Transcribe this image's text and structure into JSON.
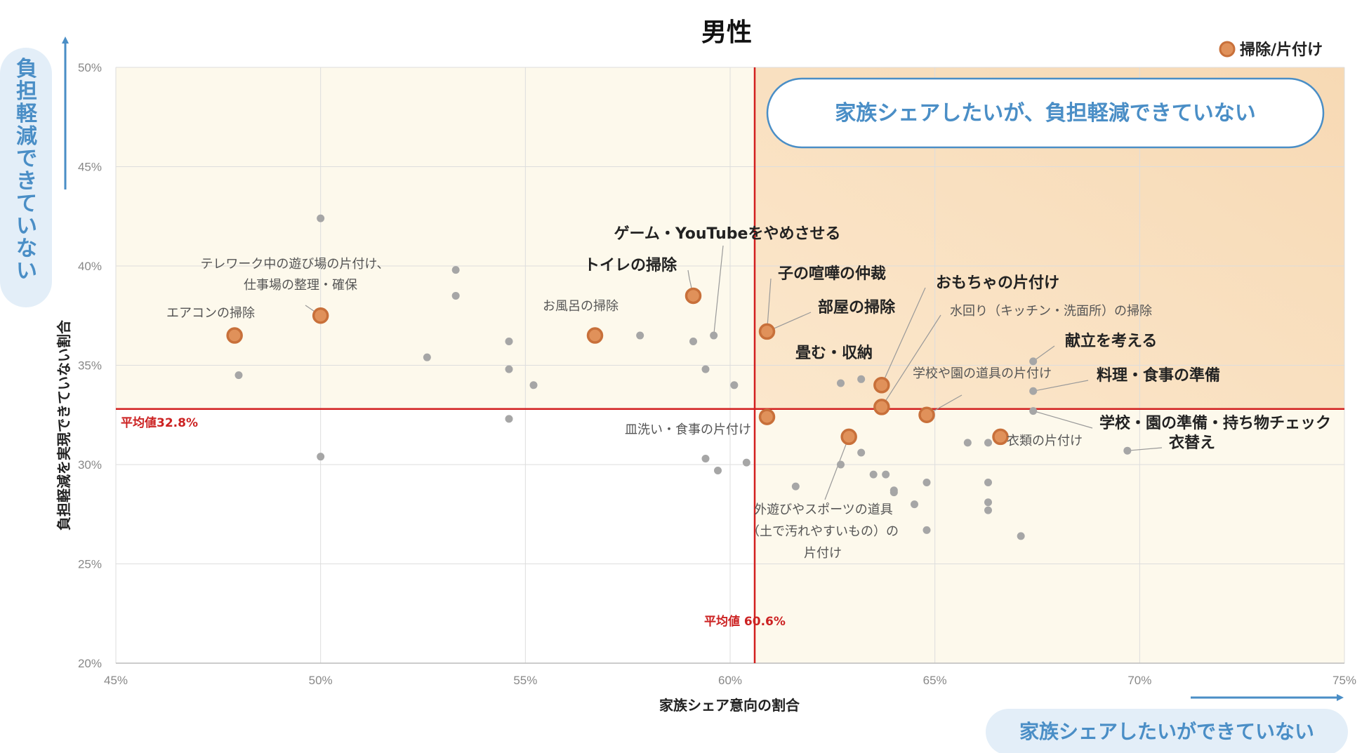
{
  "chart_data": {
    "type": "scatter",
    "title": "男性",
    "xlabel": "家族シェア意向の割合",
    "ylabel": "負担軽減を実現できていない割合",
    "xlim": [
      45,
      75
    ],
    "ylim": [
      20,
      50
    ],
    "x_ticks": [
      "45%",
      "50%",
      "55%",
      "60%",
      "65%",
      "70%",
      "75%"
    ],
    "y_ticks": [
      "20%",
      "25%",
      "30%",
      "35%",
      "40%",
      "45%",
      "50%"
    ],
    "grid": true,
    "legend": {
      "position": "top-right",
      "label": "掃除/片付け",
      "color": "#e0915a"
    },
    "avg_x": {
      "value": 60.6,
      "label": "平均値 60.6%"
    },
    "avg_y": {
      "value": 32.8,
      "label": "平均値32.8%"
    },
    "quadrant_note": "家族シェアしたいが、負担軽減できていない",
    "x_arrow_note": "家族シェアしたいができていない",
    "y_arrow_note": "負担軽減できていない",
    "highlight_points": [
      {
        "x": 47.9,
        "y": 36.5
      },
      {
        "x": 50.0,
        "y": 37.5
      },
      {
        "x": 56.7,
        "y": 36.5
      },
      {
        "x": 59.1,
        "y": 38.5
      },
      {
        "x": 60.9,
        "y": 36.7
      },
      {
        "x": 63.7,
        "y": 34.0
      },
      {
        "x": 63.7,
        "y": 32.9
      },
      {
        "x": 64.8,
        "y": 32.5
      },
      {
        "x": 60.9,
        "y": 32.4
      },
      {
        "x": 62.9,
        "y": 31.4
      },
      {
        "x": 66.6,
        "y": 31.4
      }
    ],
    "other_points": [
      {
        "x": 50.0,
        "y": 42.4
      },
      {
        "x": 48.0,
        "y": 34.5
      },
      {
        "x": 50.0,
        "y": 30.4
      },
      {
        "x": 52.6,
        "y": 35.4
      },
      {
        "x": 53.3,
        "y": 39.8
      },
      {
        "x": 53.3,
        "y": 38.5
      },
      {
        "x": 54.6,
        "y": 36.2
      },
      {
        "x": 54.6,
        "y": 34.8
      },
      {
        "x": 54.6,
        "y": 32.3
      },
      {
        "x": 55.2,
        "y": 34.0
      },
      {
        "x": 57.8,
        "y": 36.5
      },
      {
        "x": 59.1,
        "y": 36.2
      },
      {
        "x": 59.6,
        "y": 36.5
      },
      {
        "x": 59.4,
        "y": 34.8
      },
      {
        "x": 60.1,
        "y": 34.0
      },
      {
        "x": 59.4,
        "y": 30.3
      },
      {
        "x": 59.7,
        "y": 29.7
      },
      {
        "x": 60.4,
        "y": 30.1
      },
      {
        "x": 62.7,
        "y": 34.1
      },
      {
        "x": 63.2,
        "y": 34.3
      },
      {
        "x": 61.6,
        "y": 28.9
      },
      {
        "x": 62.7,
        "y": 30.0
      },
      {
        "x": 63.2,
        "y": 30.6
      },
      {
        "x": 63.5,
        "y": 29.5
      },
      {
        "x": 63.8,
        "y": 29.5
      },
      {
        "x": 64.0,
        "y": 28.7
      },
      {
        "x": 64.0,
        "y": 28.6
      },
      {
        "x": 64.5,
        "y": 28.0
      },
      {
        "x": 64.8,
        "y": 29.1
      },
      {
        "x": 64.8,
        "y": 26.7
      },
      {
        "x": 65.8,
        "y": 31.1
      },
      {
        "x": 66.3,
        "y": 31.1
      },
      {
        "x": 66.3,
        "y": 29.1
      },
      {
        "x": 66.3,
        "y": 28.1
      },
      {
        "x": 66.3,
        "y": 27.7
      },
      {
        "x": 67.1,
        "y": 26.4
      },
      {
        "x": 67.4,
        "y": 35.2
      },
      {
        "x": 67.4,
        "y": 33.7
      },
      {
        "x": 67.4,
        "y": 32.7
      },
      {
        "x": 69.7,
        "y": 30.7
      }
    ],
    "annotations": [
      {
        "text": "エアコンの掃除",
        "x": 47.9,
        "y": 36.5,
        "bold": false
      },
      {
        "text": "テレワーク中の遊び場の片付け、",
        "x": 50.0,
        "y": 37.5,
        "bold": false
      },
      {
        "text": "仕事場の整理・確保",
        "x": 50.0,
        "y": 37.5,
        "bold": false
      },
      {
        "text": "お風呂の掃除",
        "x": 56.7,
        "y": 36.5,
        "bold": false
      },
      {
        "text": "トイレの掃除",
        "x": 59.1,
        "y": 38.5,
        "bold": true
      },
      {
        "text": "ゲーム・YouTubeをやめさせる",
        "x": 59.6,
        "y": 36.5,
        "bold": true
      },
      {
        "text": "子の喧嘩の仲裁",
        "x": 60.9,
        "y": 36.7,
        "bold": true
      },
      {
        "text": "部屋の掃除",
        "x": 60.9,
        "y": 36.7,
        "bold": true
      },
      {
        "text": "おもちゃの片付け",
        "x": 63.7,
        "y": 34.0,
        "bold": true
      },
      {
        "text": "水回り（キッチン・洗面所）の掃除",
        "x": 63.7,
        "y": 32.9,
        "bold": false
      },
      {
        "text": "畳む・収納",
        "x": 63.7,
        "y": 34.0,
        "bold": true
      },
      {
        "text": "献立を考える",
        "x": 67.4,
        "y": 35.2,
        "bold": true
      },
      {
        "text": "学校や園の道具の片付け",
        "x": 64.8,
        "y": 32.5,
        "bold": false
      },
      {
        "text": "料理・食事の準備",
        "x": 67.4,
        "y": 33.7,
        "bold": true
      },
      {
        "text": "皿洗い・食事の片付け",
        "x": 60.9,
        "y": 32.4,
        "bold": false
      },
      {
        "text": "学校・園の準備・持ち物チェック",
        "x": 67.4,
        "y": 32.7,
        "bold": true
      },
      {
        "text": "衣類の片付け",
        "x": 66.6,
        "y": 31.4,
        "bold": false
      },
      {
        "text": "衣替え",
        "x": 69.7,
        "y": 30.7,
        "bold": true
      },
      {
        "text": "外遊びやスポーツの道具",
        "x": 62.9,
        "y": 31.4,
        "bold": false
      },
      {
        "text": "（土で汚れやすいもの）の",
        "x": 62.9,
        "y": 31.4,
        "bold": false
      },
      {
        "text": "片付け",
        "x": 62.9,
        "y": 31.4,
        "bold": false
      }
    ]
  }
}
